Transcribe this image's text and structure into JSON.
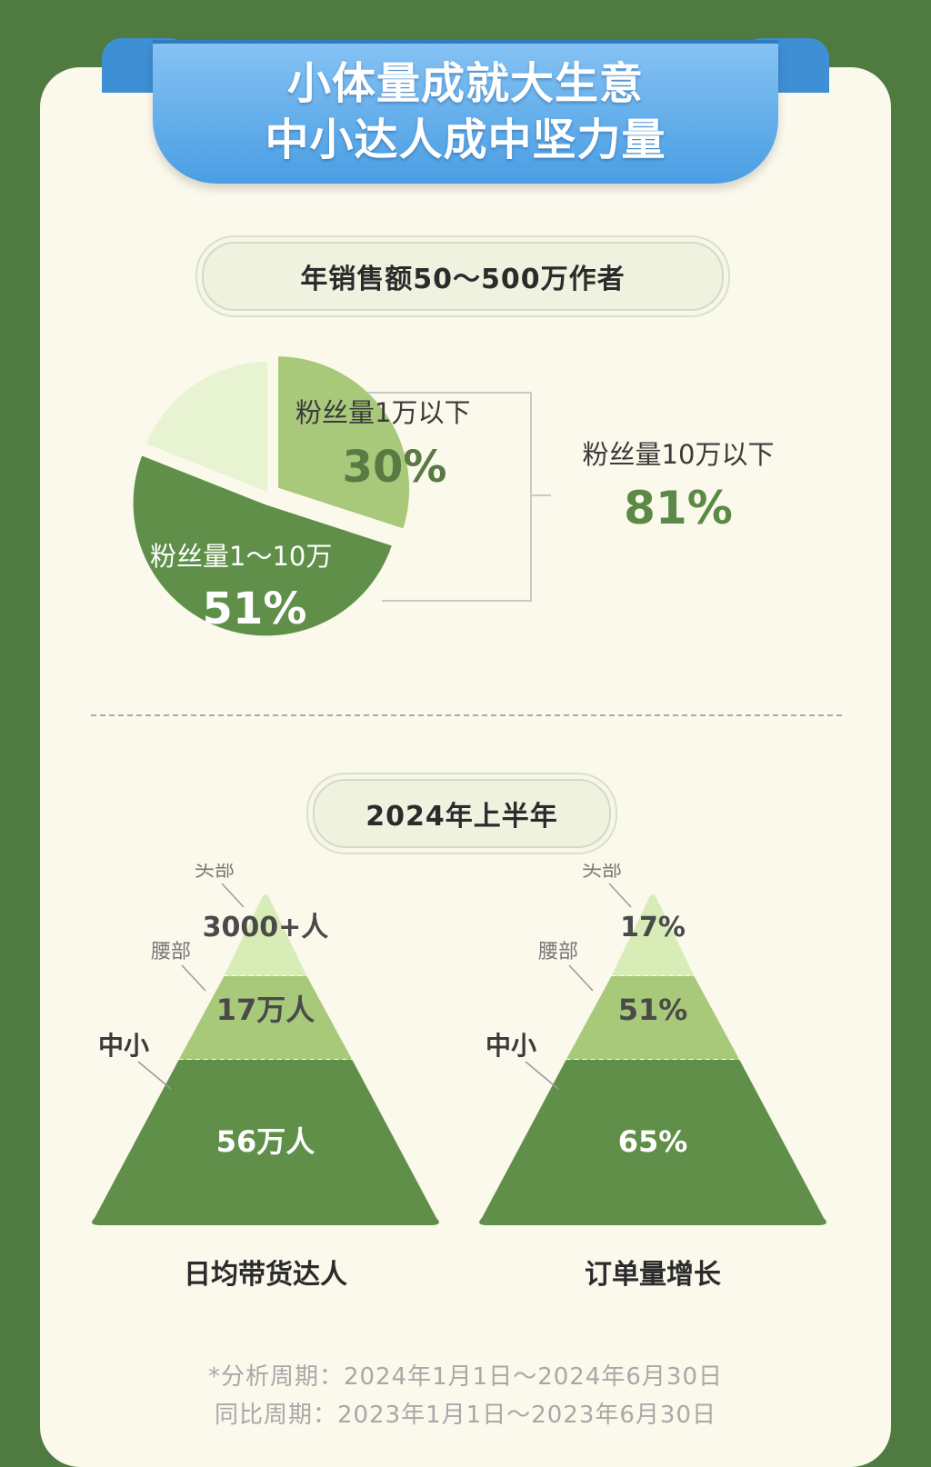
{
  "header": {
    "title_line1": "小体量成就大生意",
    "title_line2": "中小达人成中坚力量"
  },
  "section_pie": {
    "pill_label": "年销售额50～500万作者",
    "combined_label": "粉丝量10万以下",
    "combined_value": "81%"
  },
  "section_pyramids": {
    "pill_label": "2024年上半年"
  },
  "footnote": {
    "line1": "*分析周期：2024年1月1日～2024年6月30日",
    "line2": "同比周期：2023年1月1日～2023年6月30日"
  },
  "colors": {
    "light": "#d8ecb8",
    "mid": "#a8c87a",
    "dark": "#5f8f48",
    "pale": "#e8f3d2",
    "accent_text": "#5a8a46"
  },
  "chart_data": [
    {
      "type": "pie",
      "slices": [
        {
          "label": "粉丝量1万以下",
          "value": 30,
          "value_label": "30%",
          "color": "#a8c87a",
          "exploded": true
        },
        {
          "label": "粉丝量1～10万",
          "value": 51,
          "value_label": "51%",
          "color": "#5f8f48",
          "exploded": true
        },
        {
          "label": "",
          "value": 19,
          "value_label": "",
          "color": "#e8f3d2",
          "exploded": false
        }
      ]
    },
    {
      "type": "pyramid",
      "caption": "日均带货达人",
      "levels": [
        {
          "tier": "头部",
          "value_label": "3000+人",
          "color": "#d8ecb8"
        },
        {
          "tier": "腰部",
          "value_label": "17万人",
          "color": "#a8c87a"
        },
        {
          "tier": "中小",
          "value_label": "56万人",
          "color": "#5f8f48"
        }
      ]
    },
    {
      "type": "pyramid",
      "caption": "订单量增长",
      "levels": [
        {
          "tier": "头部",
          "value_label": "17%",
          "color": "#d8ecb8"
        },
        {
          "tier": "腰部",
          "value_label": "51%",
          "color": "#a8c87a"
        },
        {
          "tier": "中小",
          "value_label": "65%",
          "color": "#5f8f48"
        }
      ]
    }
  ]
}
